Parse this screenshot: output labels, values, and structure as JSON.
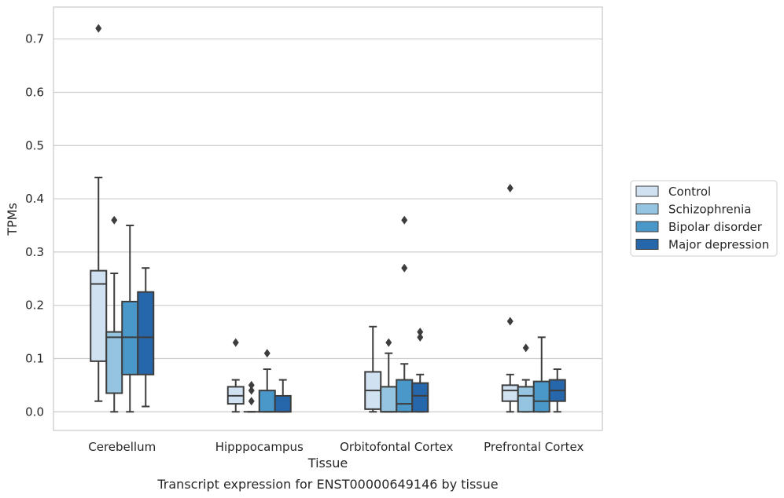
{
  "chart_data": {
    "type": "boxplot",
    "title": "",
    "caption": "Transcript expression for ENST00000649146 by tissue",
    "xlabel": "Tissue",
    "ylabel": "TPMs",
    "ylim": [
      -0.035,
      0.76
    ],
    "yticks": [
      0.0,
      0.1,
      0.2,
      0.3,
      0.4,
      0.5,
      0.6,
      0.7
    ],
    "ytick_labels": [
      "0.0",
      "0.1",
      "0.2",
      "0.3",
      "0.4",
      "0.5",
      "0.6",
      "0.7"
    ],
    "grid": "horizontal",
    "legend_position": "right",
    "categories": [
      "Cerebellum",
      "Hipppocampus",
      "Orbitofontal Cortex",
      "Prefrontal Cortex"
    ],
    "series": [
      {
        "name": "Control",
        "color": "#d0e1f2",
        "boxes": [
          {
            "whislo": 0.02,
            "q1": 0.095,
            "med": 0.24,
            "q3": 0.265,
            "whishi": 0.44,
            "fliers": [
              0.72
            ]
          },
          {
            "whislo": 0.0,
            "q1": 0.015,
            "med": 0.03,
            "q3": 0.047,
            "whishi": 0.06,
            "fliers": [
              0.13
            ]
          },
          {
            "whislo": 0.0,
            "q1": 0.005,
            "med": 0.04,
            "q3": 0.075,
            "whishi": 0.16,
            "fliers": []
          },
          {
            "whislo": 0.0,
            "q1": 0.02,
            "med": 0.04,
            "q3": 0.05,
            "whishi": 0.07,
            "fliers": [
              0.42,
              0.17
            ]
          }
        ]
      },
      {
        "name": "Schizophrenia",
        "color": "#94c4df",
        "boxes": [
          {
            "whislo": 0.0,
            "q1": 0.035,
            "med": 0.14,
            "q3": 0.15,
            "whishi": 0.26,
            "fliers": [
              0.36
            ]
          },
          {
            "whislo": 0.0,
            "q1": 0.0,
            "med": 0.0,
            "q3": 0.0,
            "whishi": 0.0,
            "fliers": [
              0.05,
              0.04,
              0.02
            ]
          },
          {
            "whislo": 0.0,
            "q1": 0.0,
            "med": 0.0,
            "q3": 0.047,
            "whishi": 0.11,
            "fliers": [
              0.13
            ]
          },
          {
            "whislo": 0.0,
            "q1": 0.0,
            "med": 0.03,
            "q3": 0.047,
            "whishi": 0.06,
            "fliers": [
              0.12
            ]
          }
        ]
      },
      {
        "name": "Bipolar disorder",
        "color": "#4a98c9",
        "boxes": [
          {
            "whislo": 0.0,
            "q1": 0.07,
            "med": 0.14,
            "q3": 0.207,
            "whishi": 0.35,
            "fliers": []
          },
          {
            "whislo": 0.0,
            "q1": 0.0,
            "med": 0.0,
            "q3": 0.04,
            "whishi": 0.08,
            "fliers": [
              0.11
            ]
          },
          {
            "whislo": 0.0,
            "q1": 0.0,
            "med": 0.015,
            "q3": 0.06,
            "whishi": 0.09,
            "fliers": [
              0.36,
              0.27
            ]
          },
          {
            "whislo": 0.0,
            "q1": 0.0,
            "med": 0.02,
            "q3": 0.057,
            "whishi": 0.14,
            "fliers": []
          }
        ]
      },
      {
        "name": "Major depression",
        "color": "#2666aa",
        "boxes": [
          {
            "whislo": 0.01,
            "q1": 0.07,
            "med": 0.14,
            "q3": 0.225,
            "whishi": 0.27,
            "fliers": []
          },
          {
            "whislo": 0.0,
            "q1": 0.0,
            "med": 0.0,
            "q3": 0.03,
            "whishi": 0.06,
            "fliers": []
          },
          {
            "whislo": 0.0,
            "q1": 0.0,
            "med": 0.03,
            "q3": 0.054,
            "whishi": 0.07,
            "fliers": [
              0.15,
              0.14
            ]
          },
          {
            "whislo": 0.0,
            "q1": 0.02,
            "med": 0.04,
            "q3": 0.06,
            "whishi": 0.08,
            "fliers": []
          }
        ]
      }
    ]
  }
}
